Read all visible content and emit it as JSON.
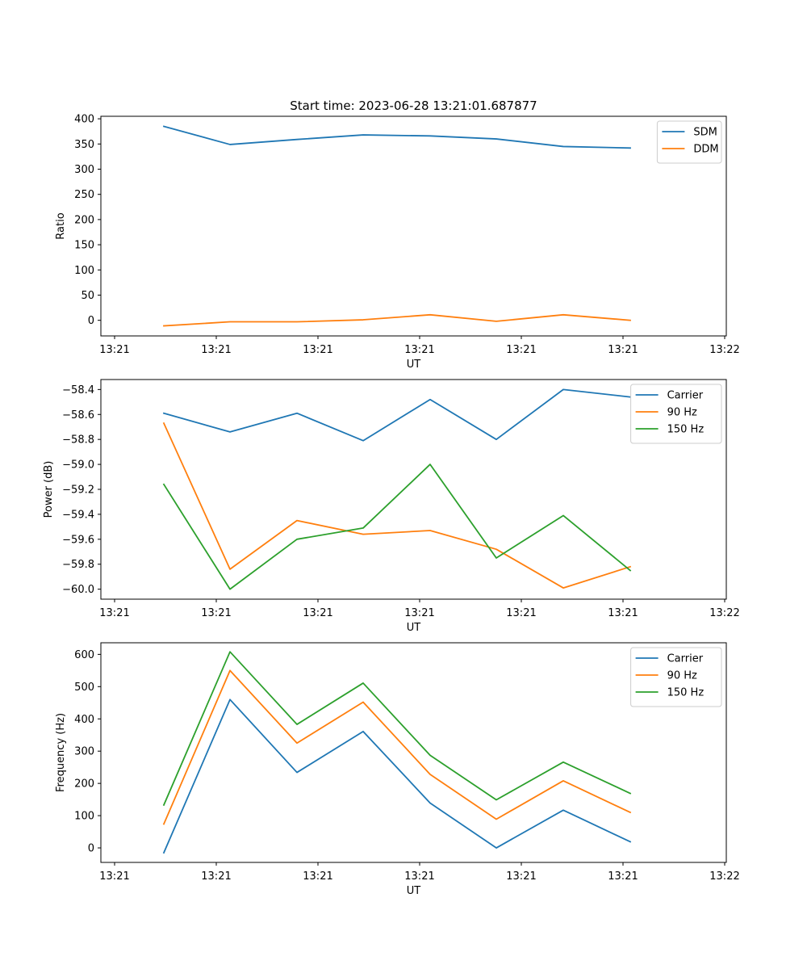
{
  "figure": {
    "title": "Start time: 2023-06-28 13:21:01.687877"
  },
  "chart_data": [
    {
      "type": "line",
      "title": "Start time: 2023-06-28 13:21:01.687877",
      "xlabel": "UT",
      "ylabel": "Ratio",
      "x_ticks": [
        "13:21",
        "13:21",
        "13:21",
        "13:21",
        "13:21",
        "13:21",
        "13:22"
      ],
      "y_ticks": [
        0,
        50,
        100,
        150,
        200,
        250,
        300,
        350,
        400
      ],
      "ylim": [
        -31,
        405
      ],
      "grid": false,
      "legend_position": "top-right",
      "series": [
        {
          "name": "SDM",
          "color": "#1f77b4",
          "values": [
            385,
            349,
            359,
            368,
            366,
            360,
            345,
            342
          ]
        },
        {
          "name": "DDM",
          "color": "#ff7f0e",
          "values": [
            -11,
            -3,
            -3,
            1,
            11,
            -2,
            11,
            0
          ]
        }
      ]
    },
    {
      "type": "line",
      "title": "",
      "xlabel": "UT",
      "ylabel": "Power (dB)",
      "x_ticks": [
        "13:21",
        "13:21",
        "13:21",
        "13:21",
        "13:21",
        "13:21",
        "13:22"
      ],
      "y_ticks": [
        -60.0,
        -59.8,
        -59.6,
        -59.4,
        -59.2,
        -59.0,
        -58.8,
        -58.6,
        -58.4
      ],
      "ylim": [
        -60.08,
        -58.32
      ],
      "grid": false,
      "legend_position": "top-right",
      "series": [
        {
          "name": "Carrier",
          "color": "#1f77b4",
          "values": [
            -58.59,
            -58.74,
            -58.59,
            -58.81,
            -58.48,
            -58.8,
            -58.4,
            -58.46
          ]
        },
        {
          "name": "90 Hz",
          "color": "#ff7f0e",
          "values": [
            -58.67,
            -59.84,
            -59.45,
            -59.56,
            -59.53,
            -59.68,
            -59.99,
            -59.82
          ]
        },
        {
          "name": "150 Hz",
          "color": "#2ca02c",
          "values": [
            -59.16,
            -60.0,
            -59.6,
            -59.51,
            -59.0,
            -59.75,
            -59.41,
            -59.85
          ]
        }
      ]
    },
    {
      "type": "line",
      "title": "",
      "xlabel": "UT",
      "ylabel": "Frequency (Hz)",
      "x_ticks": [
        "13:21",
        "13:21",
        "13:21",
        "13:21",
        "13:21",
        "13:21",
        "13:22"
      ],
      "y_ticks": [
        0,
        100,
        200,
        300,
        400,
        500,
        600
      ],
      "ylim": [
        -45,
        636
      ],
      "grid": false,
      "legend_position": "top-right",
      "series": [
        {
          "name": "Carrier",
          "color": "#1f77b4",
          "values": [
            -15,
            460,
            234,
            361,
            139,
            0,
            117,
            19
          ]
        },
        {
          "name": "90 Hz",
          "color": "#ff7f0e",
          "values": [
            74,
            550,
            325,
            452,
            228,
            89,
            208,
            110
          ]
        },
        {
          "name": "150 Hz",
          "color": "#2ca02c",
          "values": [
            133,
            608,
            383,
            511,
            287,
            149,
            266,
            169
          ]
        }
      ]
    }
  ]
}
